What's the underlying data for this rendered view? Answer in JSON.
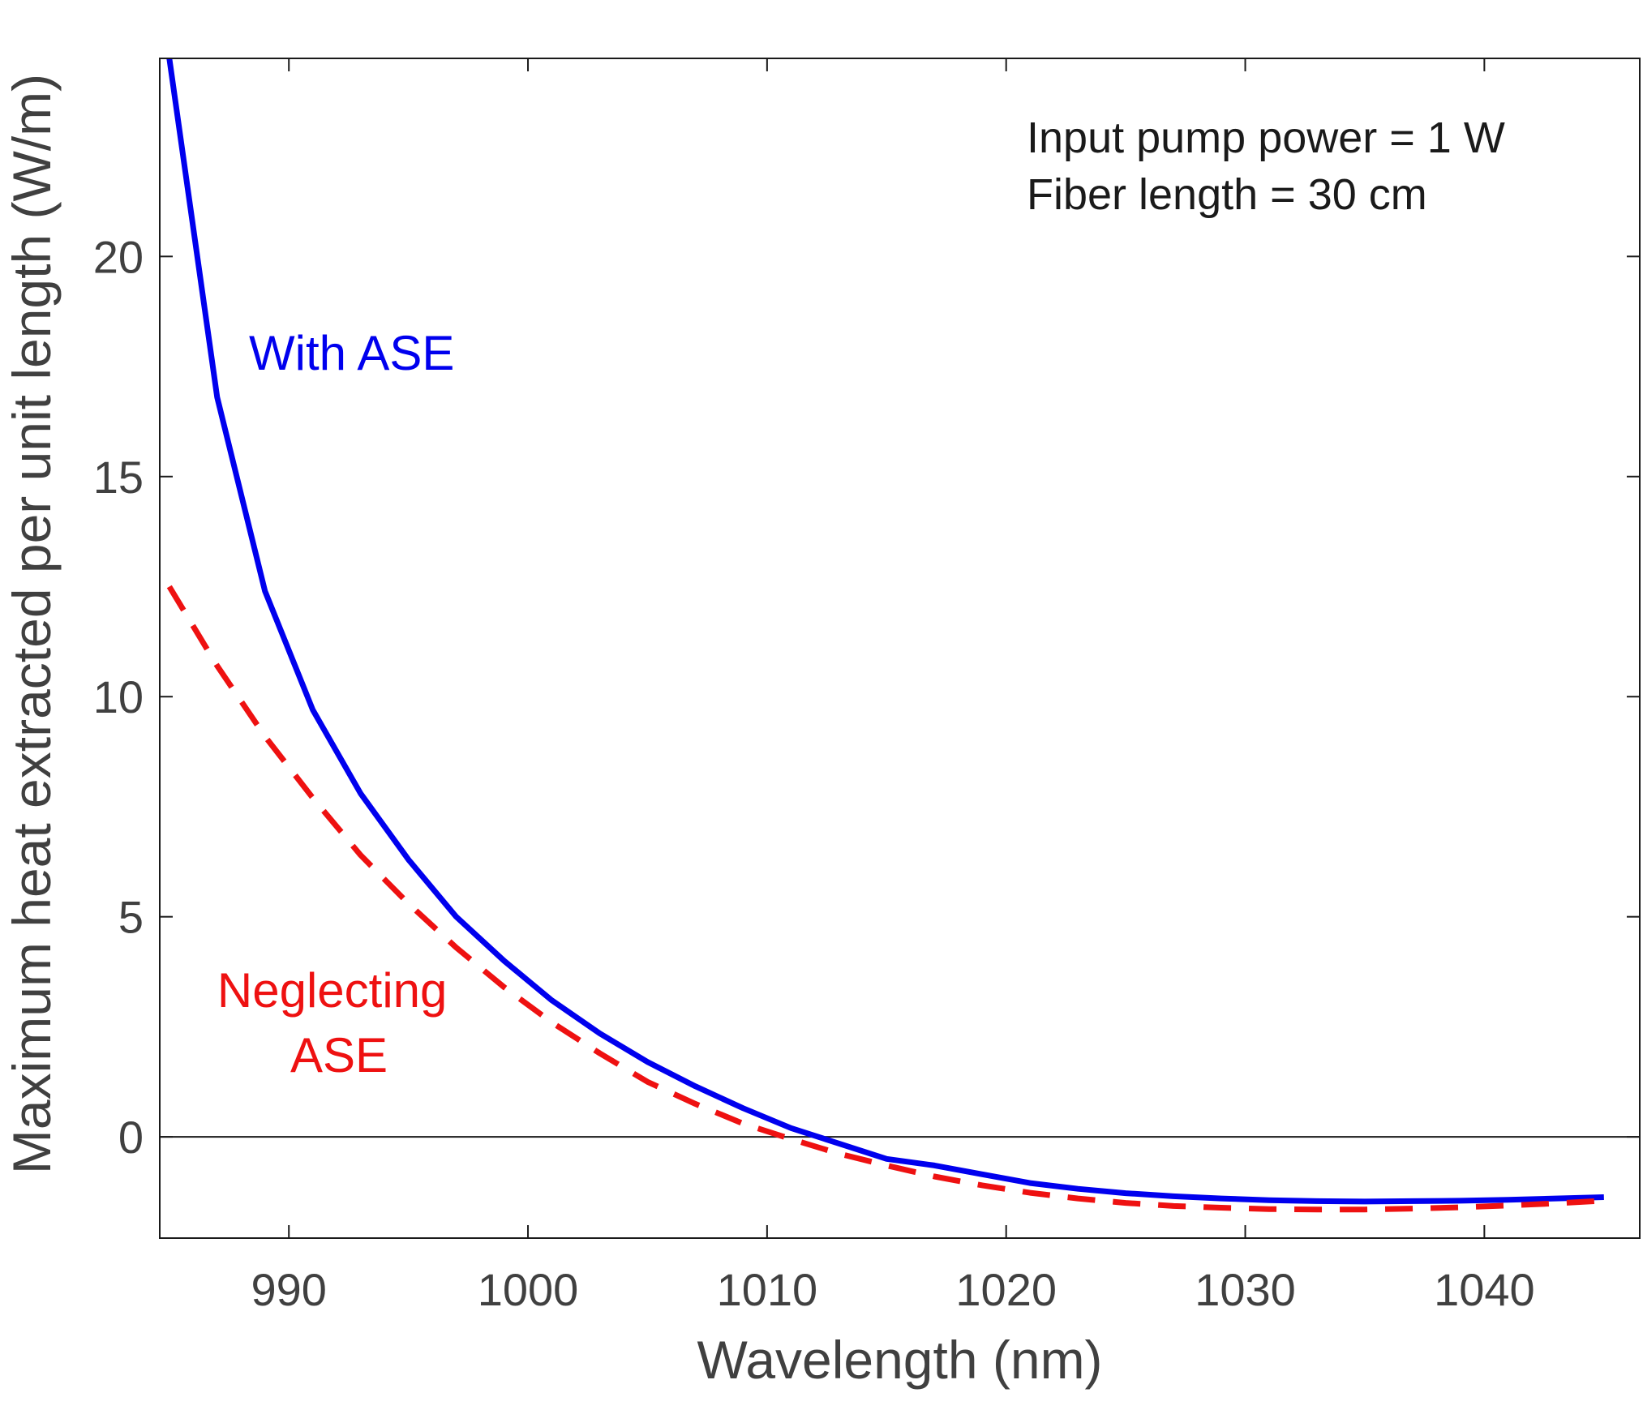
{
  "chart_data": {
    "type": "line",
    "title": "",
    "xlabel": "Wavelength (nm)",
    "ylabel": "Maximum heat extracted per unit length (W/m)",
    "xlim": [
      984.6,
      1046.5
    ],
    "ylim": [
      -2.3,
      24.5
    ],
    "xticks": [
      990,
      1000,
      1010,
      1020,
      1030,
      1040
    ],
    "yticks": [
      0,
      5,
      10,
      15,
      20
    ],
    "grid": false,
    "zero_line": 0,
    "annotations": [
      "Input pump power = 1 W",
      "Fiber length = 30 cm"
    ],
    "series": [
      {
        "name": "With ASE",
        "color": "#0000ee",
        "style": "solid",
        "x": [
          985,
          987,
          989,
          991,
          993,
          995,
          997,
          999,
          1001,
          1003,
          1005,
          1007,
          1009,
          1011,
          1013,
          1015,
          1017,
          1019,
          1021,
          1023,
          1025,
          1027,
          1029,
          1031,
          1033,
          1035,
          1037,
          1039,
          1041,
          1043,
          1045
        ],
        "y": [
          24.5,
          16.8,
          12.4,
          9.7,
          7.8,
          6.3,
          5.0,
          4.0,
          3.1,
          2.35,
          1.7,
          1.15,
          0.65,
          0.2,
          -0.15,
          -0.5,
          -0.65,
          -0.85,
          -1.05,
          -1.18,
          -1.28,
          -1.35,
          -1.4,
          -1.44,
          -1.46,
          -1.47,
          -1.46,
          -1.45,
          -1.43,
          -1.4,
          -1.37
        ]
      },
      {
        "name": "Neglecting ASE",
        "color": "#ee1111",
        "style": "dashed",
        "x": [
          985,
          987,
          989,
          991,
          993,
          995,
          997,
          999,
          1001,
          1003,
          1005,
          1007,
          1009,
          1011,
          1013,
          1015,
          1017,
          1019,
          1021,
          1023,
          1025,
          1027,
          1029,
          1031,
          1033,
          1035,
          1037,
          1039,
          1041,
          1043,
          1045
        ],
        "y": [
          12.5,
          10.7,
          9.1,
          7.7,
          6.4,
          5.3,
          4.3,
          3.4,
          2.6,
          1.9,
          1.25,
          0.75,
          0.3,
          -0.05,
          -0.38,
          -0.65,
          -0.9,
          -1.1,
          -1.27,
          -1.4,
          -1.5,
          -1.57,
          -1.61,
          -1.64,
          -1.65,
          -1.65,
          -1.63,
          -1.6,
          -1.56,
          -1.51,
          -1.45
        ]
      }
    ],
    "series_labels": [
      {
        "lines": [
          "With ASE"
        ],
        "color": "#0000ee"
      },
      {
        "lines": [
          "Neglecting",
          "ASE"
        ],
        "color": "#ee1111"
      }
    ]
  }
}
